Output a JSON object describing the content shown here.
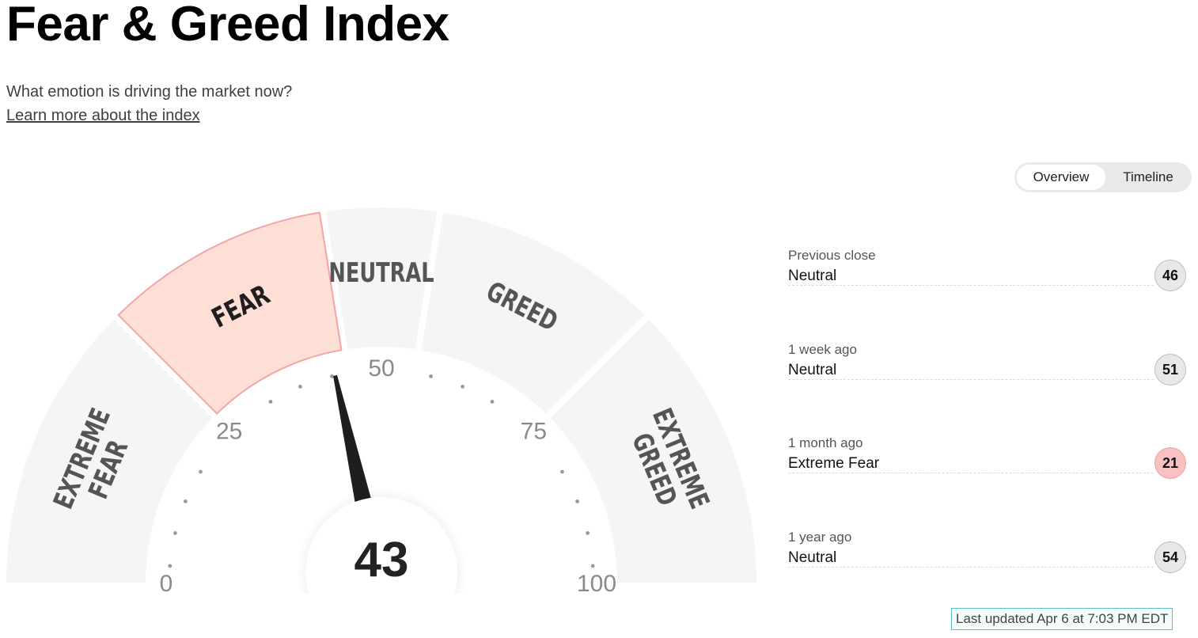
{
  "header": {
    "title": "Fear & Greed Index",
    "subtitle": "What emotion is driving the market now?",
    "learn_more": "Learn more about the index"
  },
  "view_toggle": {
    "options": [
      "Overview",
      "Timeline"
    ],
    "selected": "Overview"
  },
  "gauge": {
    "value": 43,
    "value_label": "43",
    "min": 0,
    "max": 100,
    "ticks": [
      "0",
      "25",
      "50",
      "75",
      "100"
    ],
    "active_segment": "FEAR",
    "segments": [
      {
        "label_lines": [
          "EXTREME",
          "FEAR"
        ],
        "from": 0,
        "to": 25
      },
      {
        "label_lines": [
          "FEAR"
        ],
        "from": 25,
        "to": 45
      },
      {
        "label_lines": [
          "NEUTRAL"
        ],
        "from": 45,
        "to": 55
      },
      {
        "label_lines": [
          "GREED"
        ],
        "from": 55,
        "to": 75
      },
      {
        "label_lines": [
          "EXTREME",
          "GREED"
        ],
        "from": 75,
        "to": 100
      }
    ],
    "colors": {
      "segment": "#f5f5f5",
      "active_segment": "#fddfd6",
      "active_border": "#f4a4a9",
      "needle": "#1e1e1e"
    }
  },
  "history": [
    {
      "label": "Previous close",
      "rating": "Neutral",
      "score": "46"
    },
    {
      "label": "1 week ago",
      "rating": "Neutral",
      "score": "51"
    },
    {
      "label": "1 month ago",
      "rating": "Extreme Fear",
      "score": "21"
    },
    {
      "label": "1 year ago",
      "rating": "Neutral",
      "score": "54"
    }
  ],
  "last_updated": "Last updated Apr 6 at 7:03 PM EDT"
}
